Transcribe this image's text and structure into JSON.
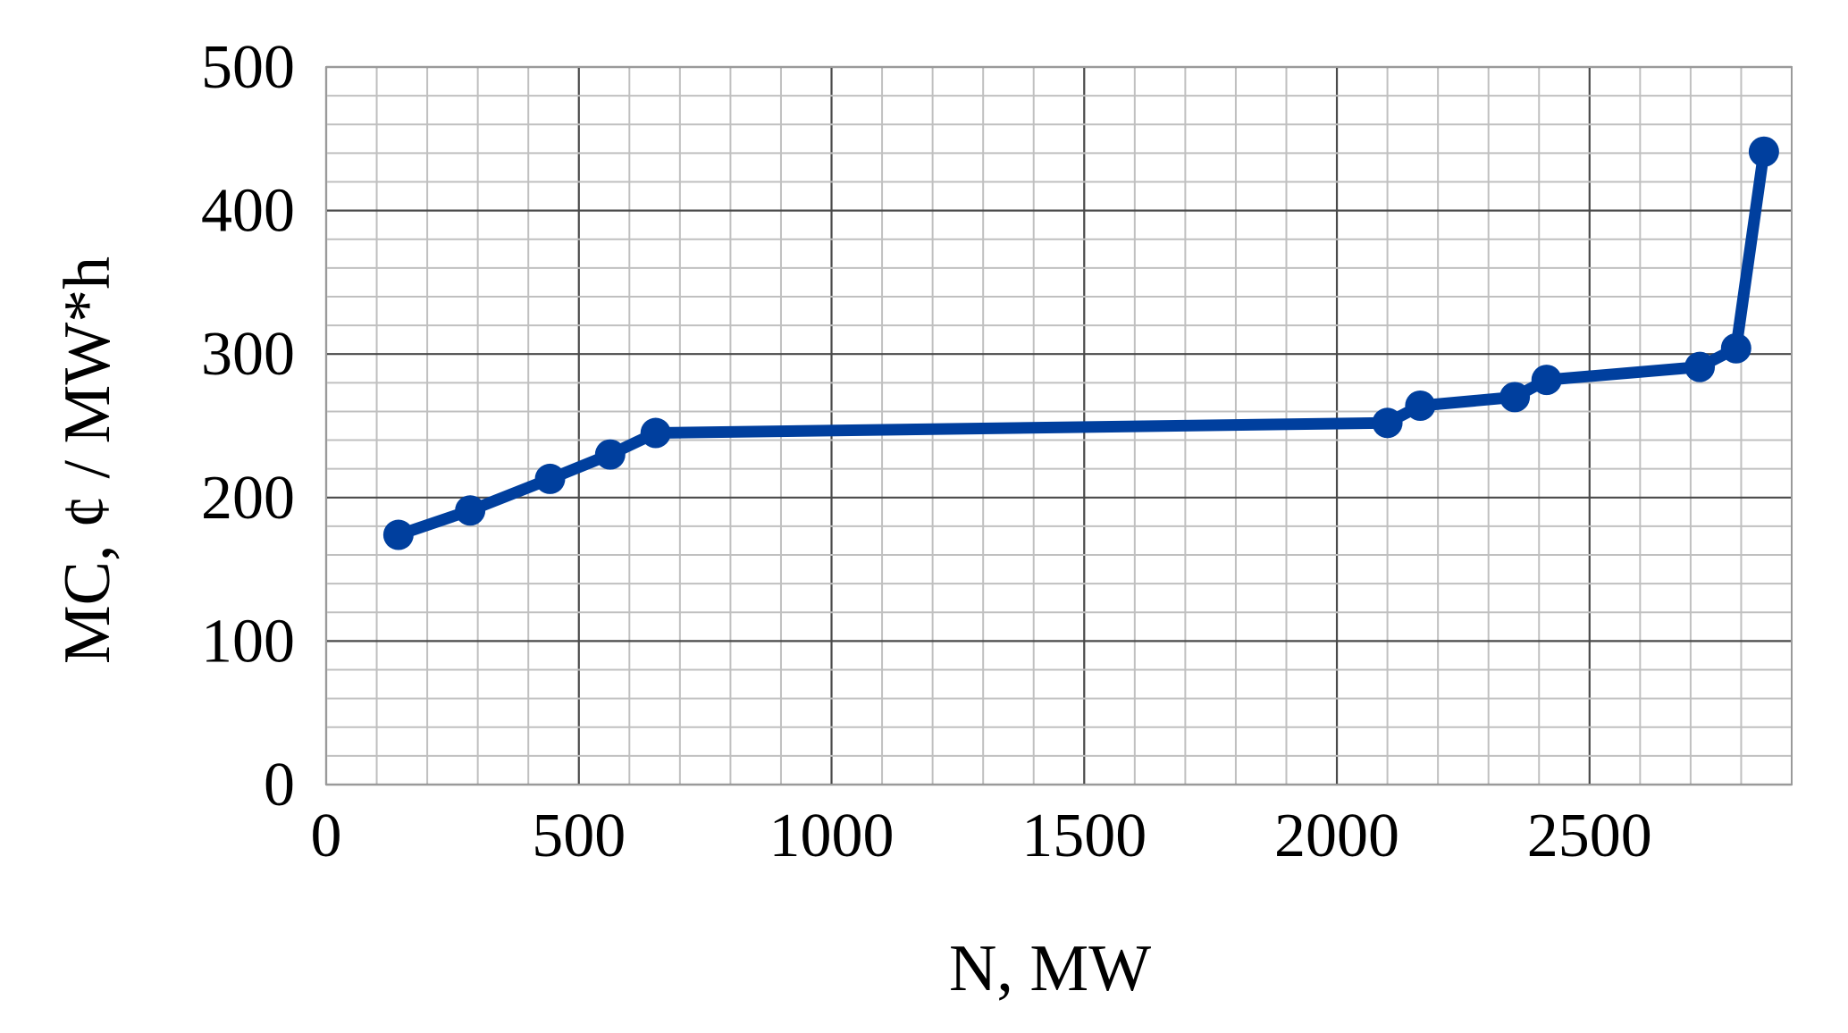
{
  "chart_data": {
    "type": "line",
    "title": "",
    "xlabel": "N, MW",
    "ylabel": "MC,  ¢ / MW*h",
    "xlim": [
      0,
      2900
    ],
    "ylim": [
      0,
      500
    ],
    "x_ticks": [
      0,
      500,
      1000,
      1500,
      2000,
      2500
    ],
    "y_ticks": [
      0,
      100,
      200,
      300,
      400,
      500
    ],
    "grid": true,
    "x_minor_step": 100,
    "y_minor_step": 20,
    "legend": "none",
    "colors": {
      "line": "#003f9e",
      "marker": "#003f9e",
      "major_grid": "#4a4a4a",
      "minor_grid": "#c0c0c0"
    },
    "series": [
      {
        "x": [
          143,
          285,
          443,
          562,
          652,
          2100,
          2165,
          2352,
          2415,
          2718,
          2790,
          2845
        ],
        "y": [
          174,
          191,
          213,
          230,
          245,
          252,
          264,
          270,
          282,
          291,
          304,
          441
        ]
      }
    ]
  }
}
